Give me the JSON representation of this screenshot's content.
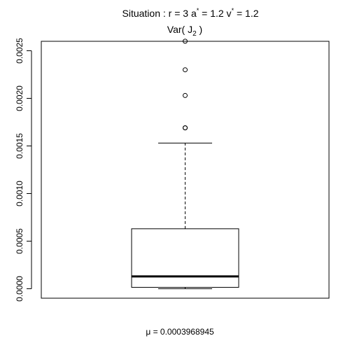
{
  "chart_data": {
    "type": "boxplot",
    "title": {
      "line1_prefix": "Situation :  r = 3 a",
      "line1_sup1": "*",
      "line1_mid": " = 1.2 v",
      "line1_sup2": "*",
      "line1_suffix": " = 1.2",
      "line2_prefix": "Var( J",
      "line2_sub": "2",
      "line2_suffix": " )"
    },
    "xlabel": "",
    "ylabel": "",
    "ylim": [
      -0.0001,
      0.00275
    ],
    "yticks": [
      0.0,
      0.0005,
      0.001,
      0.0015,
      0.002,
      0.0025
    ],
    "ytick_labels": [
      "0.0000",
      "0.0005",
      "0.0010",
      "0.0015",
      "0.0020",
      "0.0025"
    ],
    "box": {
      "whisker_low": 0.0,
      "q1": 1.5e-05,
      "median": 0.00013,
      "q3": 0.00063,
      "whisker_high": 0.00153
    },
    "outliers": [
      0.00169,
      0.00169,
      0.00203,
      0.0023,
      0.0026
    ],
    "footer": {
      "symbol": "μ",
      "text": " = 0.0003968945"
    },
    "grid": false,
    "legend": "none"
  }
}
